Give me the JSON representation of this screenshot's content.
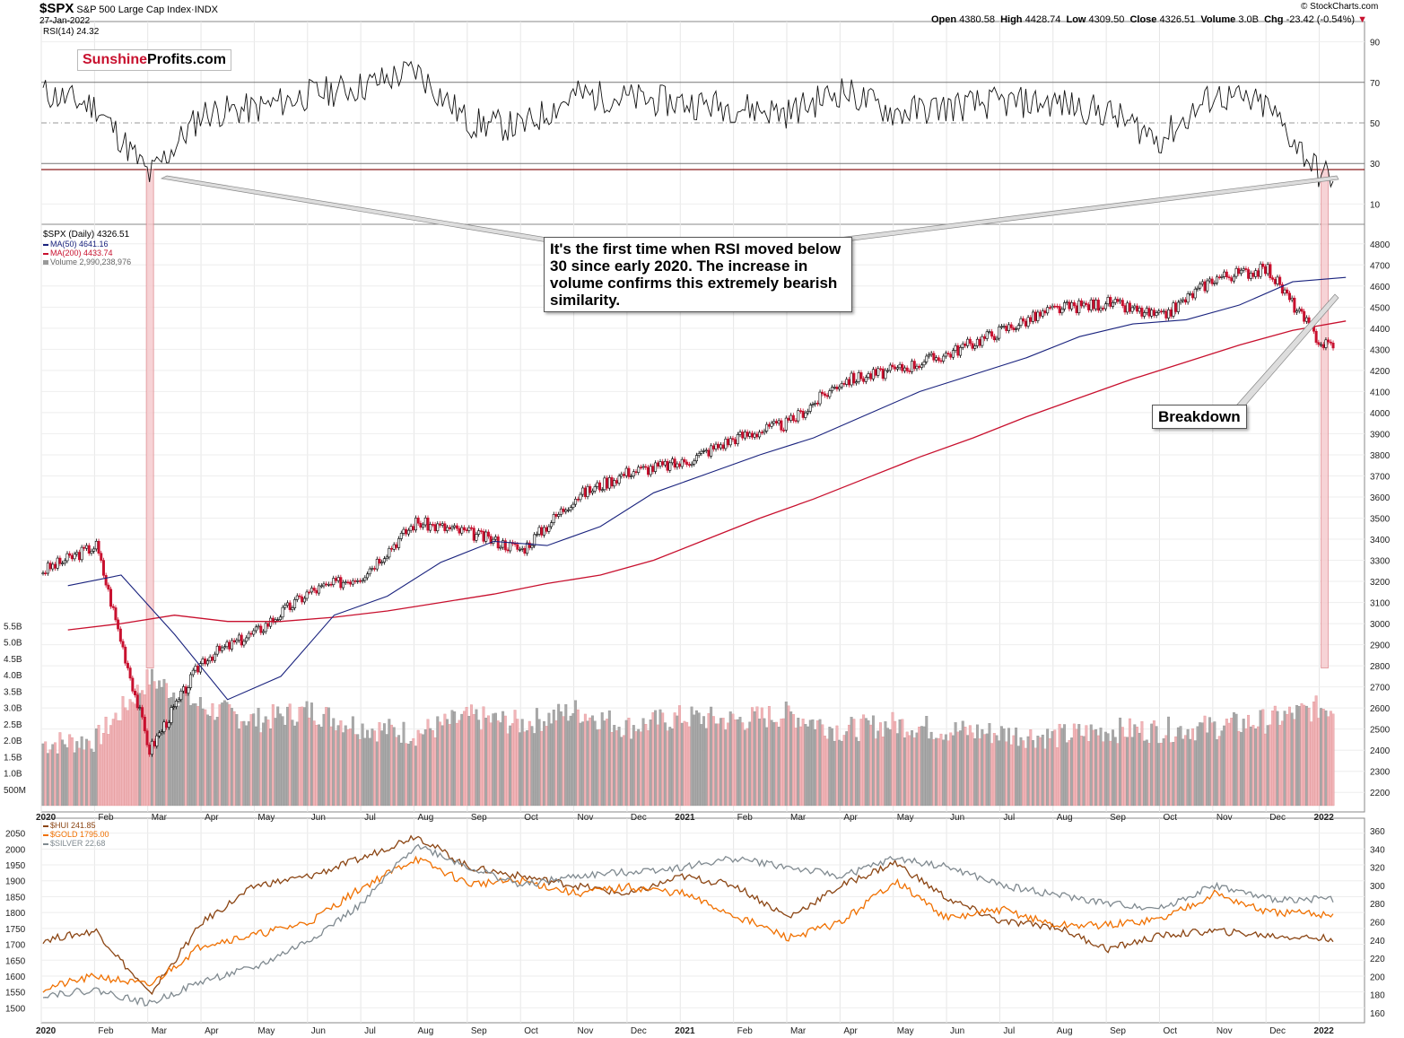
{
  "header": {
    "symbol": "$SPX",
    "name": "S&P 500 Large Cap Index",
    "exchange": "INDX",
    "date": "27-Jan-2022",
    "open_label": "Open",
    "open": "4380.58",
    "high_label": "High",
    "high": "4428.74",
    "low_label": "Low",
    "low": "4309.50",
    "close_label": "Close",
    "close": "4326.51",
    "volume_label": "Volume",
    "volume": "3.0B",
    "chg_label": "Chg",
    "chg": "-23.42 (-0.54%)",
    "credit": "© StockCharts.com"
  },
  "logo": {
    "part1": "Sunshine",
    "part2": "Profits.com",
    "color1": "#c8102e"
  },
  "callouts": {
    "rsi_note": "It's the first time when RSI moved below 30 since early 2020. The increase in volume confirms this extremely bearish similarity.",
    "breakdown": "Breakdown"
  },
  "colors": {
    "ma50": "#1a237e",
    "ma200": "#c8102e",
    "up": "#000000",
    "down": "#c8102e",
    "vol_up": "#a9a9a9",
    "vol_down": "#f0b4b8",
    "hui": "#8b4513",
    "gold": "#f07000",
    "silver": "#808a90",
    "highlight": "#f6c9cc"
  },
  "chart_data": [
    {
      "type": "line",
      "panel": "RSI",
      "title": "RSI(14) 24.32",
      "ylim": [
        0,
        100
      ],
      "y_ticks": [
        10,
        30,
        50,
        70,
        90
      ],
      "x": [
        "2020-01",
        "2020-02",
        "2020-03",
        "2020-04",
        "2020-05",
        "2020-06",
        "2020-07",
        "2020-08",
        "2020-09",
        "2020-10",
        "2020-11",
        "2020-12",
        "2021-01",
        "2021-02",
        "2021-03",
        "2021-04",
        "2021-05",
        "2021-06",
        "2021-07",
        "2021-08",
        "2021-09",
        "2021-10",
        "2021-11",
        "2021-12",
        "2022-01"
      ],
      "series": [
        {
          "name": "RSI(14)",
          "values": [
            65,
            58,
            24,
            55,
            57,
            64,
            68,
            76,
            50,
            48,
            64,
            62,
            60,
            58,
            55,
            66,
            55,
            58,
            60,
            60,
            55,
            42,
            64,
            58,
            24
          ]
        }
      ]
    },
    {
      "type": "line",
      "panel": "SPX",
      "title": "$SPX (Daily) 4326.51",
      "ylim": [
        2150,
        4850
      ],
      "y_ticks": [
        2200,
        2300,
        2400,
        2500,
        2600,
        2700,
        2800,
        2900,
        3000,
        3100,
        3200,
        3300,
        3400,
        3500,
        3600,
        3700,
        3800,
        3900,
        4000,
        4100,
        4200,
        4300,
        4400,
        4500,
        4600,
        4700,
        4800
      ],
      "x": [
        "2020-01",
        "2020-02",
        "2020-03",
        "2020-04",
        "2020-05",
        "2020-06",
        "2020-07",
        "2020-08",
        "2020-09",
        "2020-10",
        "2020-11",
        "2020-12",
        "2021-01",
        "2021-02",
        "2021-03",
        "2021-04",
        "2021-05",
        "2021-06",
        "2021-07",
        "2021-08",
        "2021-09",
        "2021-10",
        "2021-11",
        "2021-12",
        "2022-01"
      ],
      "series": [
        {
          "name": "$SPX (Daily) 4326.51",
          "values": [
            3250,
            3370,
            2400,
            2830,
            2960,
            3150,
            3230,
            3480,
            3430,
            3350,
            3600,
            3720,
            3760,
            3880,
            3950,
            4150,
            4200,
            4280,
            4390,
            4490,
            4520,
            4450,
            4640,
            4680,
            4326
          ]
        },
        {
          "name": "MA(50) 4641.16",
          "values": [
            3180,
            3230,
            2950,
            2640,
            2750,
            3040,
            3130,
            3290,
            3390,
            3370,
            3460,
            3620,
            3710,
            3800,
            3880,
            3990,
            4100,
            4180,
            4260,
            4360,
            4420,
            4440,
            4510,
            4620,
            4641
          ]
        },
        {
          "name": "MA(200) 4433.74",
          "values": [
            2970,
            3000,
            3040,
            3010,
            3010,
            3030,
            3060,
            3100,
            3140,
            3190,
            3230,
            3300,
            3400,
            3500,
            3590,
            3690,
            3790,
            3880,
            3980,
            4070,
            4160,
            4240,
            4320,
            4390,
            4434
          ]
        }
      ]
    },
    {
      "type": "bar",
      "panel": "Volume",
      "title": "Volume 2,990,238,976",
      "unit": "B",
      "ylim": [
        0,
        5.7
      ],
      "y_tick_labels": [
        "500M",
        "1.0B",
        "1.5B",
        "2.0B",
        "2.5B",
        "3.0B",
        "3.5B",
        "4.0B",
        "4.5B",
        "5.0B",
        "5.5B"
      ],
      "x": [
        "2020-01",
        "2020-02",
        "2020-03",
        "2020-04",
        "2020-05",
        "2020-06",
        "2020-07",
        "2020-08",
        "2020-09",
        "2020-10",
        "2020-11",
        "2020-12",
        "2021-01",
        "2021-02",
        "2021-03",
        "2021-04",
        "2021-05",
        "2021-06",
        "2021-07",
        "2021-08",
        "2021-09",
        "2021-10",
        "2021-11",
        "2021-12",
        "2022-01"
      ],
      "values": [
        1.9,
        2.0,
        3.9,
        3.0,
        2.6,
        2.9,
        2.4,
        2.2,
        2.7,
        2.5,
        2.9,
        2.4,
        2.7,
        2.6,
        2.8,
        2.3,
        2.5,
        2.3,
        2.2,
        2.1,
        2.3,
        2.3,
        2.4,
        2.6,
        3.0
      ]
    },
    {
      "type": "line",
      "panel": "Precious metals",
      "x": [
        "2020-01",
        "2020-02",
        "2020-03",
        "2020-04",
        "2020-05",
        "2020-06",
        "2020-07",
        "2020-08",
        "2020-09",
        "2020-10",
        "2020-11",
        "2020-12",
        "2021-01",
        "2021-02",
        "2021-03",
        "2021-04",
        "2021-05",
        "2021-06",
        "2021-07",
        "2021-08",
        "2021-09",
        "2021-10",
        "2021-11",
        "2021-12",
        "2022-01"
      ],
      "left_axis": {
        "ylim": [
          1470,
          2080
        ],
        "ticks": [
          1500,
          1550,
          1600,
          1650,
          1700,
          1750,
          1800,
          1850,
          1900,
          1950,
          2000,
          2050
        ]
      },
      "right_axis": {
        "ylim": [
          155,
          368
        ],
        "ticks": [
          160,
          180,
          200,
          220,
          240,
          260,
          280,
          300,
          320,
          340,
          360
        ]
      },
      "series": [
        {
          "name": "$HUI 241.85",
          "axis": "right",
          "values": [
            240,
            250,
            180,
            260,
            300,
            310,
            330,
            355,
            320,
            310,
            300,
            290,
            310,
            300,
            265,
            300,
            325,
            285,
            260,
            255,
            230,
            245,
            250,
            245,
            242
          ]
        },
        {
          "name": "$GOLD 1795.00",
          "axis": "left",
          "values": [
            1560,
            1600,
            1570,
            1700,
            1730,
            1770,
            1880,
            1970,
            1890,
            1900,
            1860,
            1880,
            1860,
            1790,
            1720,
            1770,
            1900,
            1780,
            1810,
            1760,
            1760,
            1780,
            1860,
            1800,
            1795
          ]
        },
        {
          "name": "$SILVER 22.68",
          "axis": "right",
          "values": [
            180,
            185,
            170,
            195,
            210,
            240,
            280,
            345,
            320,
            300,
            310,
            315,
            320,
            330,
            320,
            310,
            330,
            320,
            300,
            290,
            280,
            275,
            300,
            285,
            285
          ]
        }
      ]
    }
  ],
  "x_axis_labels": [
    "2020",
    "Feb",
    "Mar",
    "Apr",
    "May",
    "Jun",
    "Jul",
    "Aug",
    "Sep",
    "Oct",
    "Nov",
    "Dec",
    "2021",
    "Feb",
    "Mar",
    "Apr",
    "May",
    "Jun",
    "Jul",
    "Aug",
    "Sep",
    "Oct",
    "Nov",
    "Dec",
    "2022"
  ]
}
